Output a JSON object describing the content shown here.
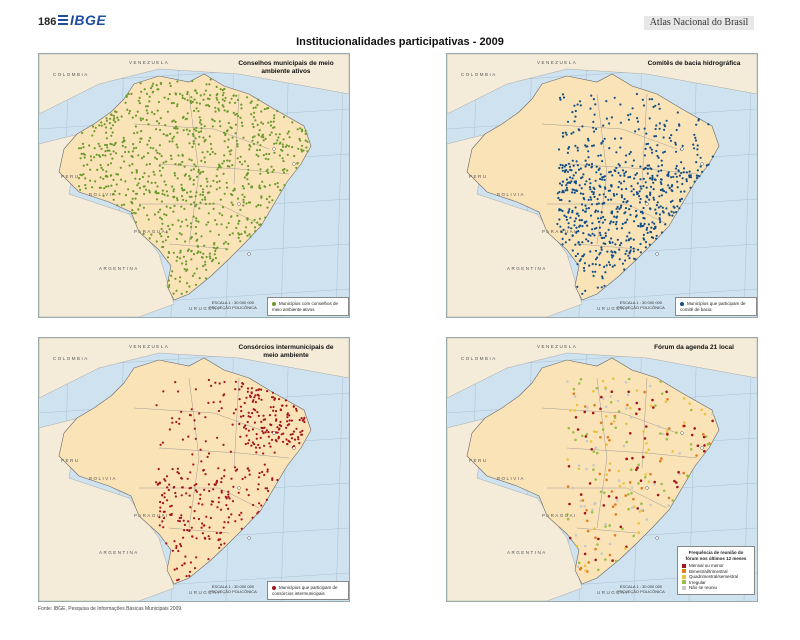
{
  "header": {
    "page_number": "186",
    "logo": "IBGE",
    "atlas_label": "Atlas Nacional do Brasil"
  },
  "main_title": "Institucionalidades participativas - 2009",
  "source": "Fonte: IBGE, Pesquisa de Informações Básicas Municipais 2009.",
  "common_labels": {
    "colombia": "COLOMBIA",
    "venezuela": "VENEZUELA",
    "guyana": "GUYANA",
    "suriname": "SURINAME",
    "guiane": "GUIANE",
    "equador": "EQUADOR",
    "peru": "PERU",
    "bolivia": "BOLIVIA",
    "paraguai": "PARAGUAI",
    "argentina": "ARGENTINA",
    "uruguai": "URUGUAI",
    "oceano_pacifico": "OCEANO PACÍFICO",
    "oceano_atlantico": "OCEANO ATLÂNTICO",
    "scale_title": "ESCALA 1 : 30 000 000",
    "scale_ticks": "150  0  150  300  450 km",
    "projection": "PROJEÇÃO POLICÔNICA"
  },
  "maps": [
    {
      "title": "Conselhos municipais de meio ambiente ativos",
      "legend": "Municípios com conselhos de meio ambiente ativos",
      "color": "#6b9a2c"
    },
    {
      "title": "Comitês de bacia hidrográfica",
      "legend": "Municípios que participam de comitê de bacia",
      "color": "#114f86"
    },
    {
      "title": "Consórcios intermunicipais de meio ambiente",
      "legend": "Municípios que participam de consórcios intermunicipais",
      "color": "#a3141c"
    },
    {
      "title": "Fórum da agenda 21 local",
      "legend_title": "Frequência de reunião do fórum nos últimos 12 meses",
      "legend_items": [
        {
          "label": "Mensal ou menor",
          "color": "#a3141c"
        },
        {
          "label": "Bimestral/trimestral",
          "color": "#e07d1c"
        },
        {
          "label": "Quadrimestral/semestral",
          "color": "#e8c43a"
        },
        {
          "label": "Irregular",
          "color": "#9bbf46"
        },
        {
          "label": "Não se reuniu",
          "color": "#c8c8c8"
        }
      ]
    }
  ]
}
